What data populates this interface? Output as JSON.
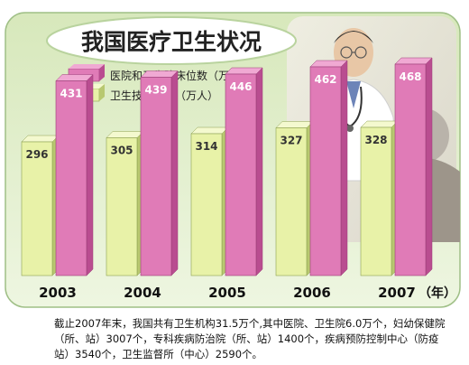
{
  "title": "我国医疗卫生状况",
  "caption": "截止2007年末，我国共有卫生机构31.5万个,其中医院、卫生院6.0万个，妇幼保健院（所、站）3007个，专科疾病防治院（所、站）1400个，疾病预防控制中心（防疫站）3540个，卫生监督所（中心）2590个。",
  "colors": {
    "beds": "#e07bb7",
    "beds_side": "#b94d90",
    "beds_top": "#f0a9d3",
    "staff": "#e8f2a8",
    "staff_side": "#b8c870",
    "staff_top": "#f4f9cf",
    "panel": "#cfe3b0",
    "panel_bg": "#e3f0cf"
  },
  "chart_data": {
    "type": "bar",
    "title": "我国医疗卫生状况",
    "categories": [
      "2003",
      "2004",
      "2005",
      "2006",
      "2007"
    ],
    "x_unit": "（年）",
    "series": [
      {
        "name": "医院和卫生院床位数（万张）",
        "values": [
          431,
          439,
          446,
          462,
          468
        ]
      },
      {
        "name": "卫生技术人员（万人）",
        "values": [
          296,
          305,
          314,
          327,
          328
        ]
      }
    ],
    "ylim": [
      0,
      500
    ],
    "grid": false,
    "legend_position": "top-left"
  }
}
